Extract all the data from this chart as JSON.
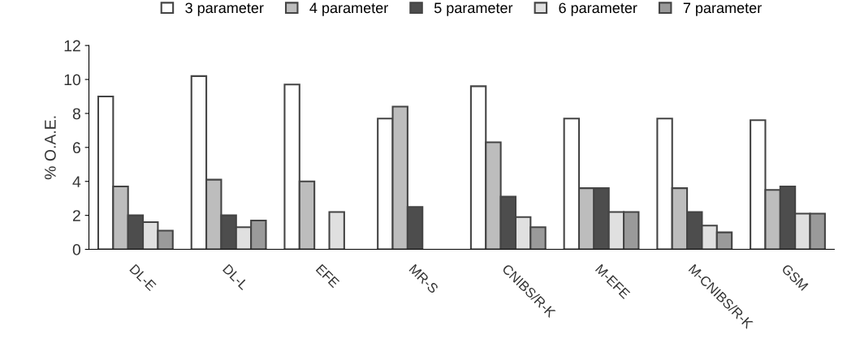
{
  "chart_data": {
    "type": "bar",
    "ylabel": "% O.A.E.",
    "categories": [
      "DL-E",
      "DL-L",
      "EFE",
      "MR-S",
      "CNIBS/R-K",
      "M-EFE",
      "M-CNIBS/R-K",
      "GSM"
    ],
    "series": [
      {
        "name": "3 parameter",
        "color": "#ffffff",
        "values": [
          9.0,
          10.2,
          9.7,
          7.7,
          9.6,
          7.7,
          7.7,
          7.6
        ]
      },
      {
        "name": "4 parameter",
        "color": "#bdbdbd",
        "values": [
          3.7,
          4.1,
          4.0,
          8.4,
          6.3,
          3.6,
          3.6,
          3.5
        ]
      },
      {
        "name": "5 parameter",
        "color": "#4d4d4d",
        "values": [
          2.0,
          2.0,
          null,
          2.5,
          3.1,
          3.6,
          2.2,
          3.7
        ]
      },
      {
        "name": "6 parameter",
        "color": "#e0e0e0",
        "values": [
          1.6,
          1.3,
          2.2,
          null,
          1.9,
          2.2,
          1.4,
          2.1
        ]
      },
      {
        "name": "7 parameter",
        "color": "#9a9a9a",
        "values": [
          1.1,
          1.7,
          null,
          null,
          1.3,
          2.2,
          1.0,
          2.1
        ]
      }
    ],
    "ylim": [
      0,
      12
    ],
    "yticks": [
      0,
      2,
      4,
      6,
      8,
      10,
      12
    ],
    "grid": false,
    "legend": "top"
  }
}
